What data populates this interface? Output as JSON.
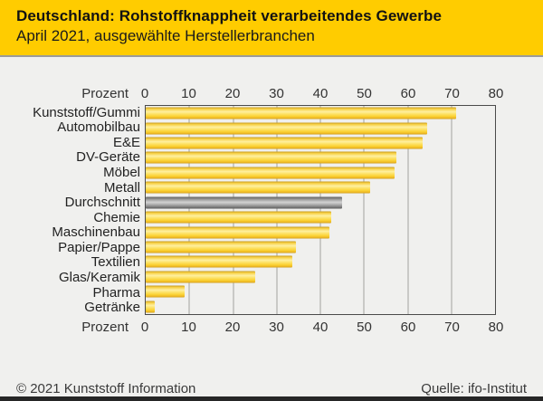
{
  "header": {
    "title": "Deutschland: Rohstoffknappheit verarbeitendes Gewerbe",
    "subtitle": "April 2021, ausgewählte Herstellerbranchen",
    "background_color": "#FFCC00"
  },
  "chart_data": {
    "type": "bar",
    "orientation": "horizontal",
    "axis_label": "Prozent",
    "ticks": [
      0,
      10,
      20,
      30,
      40,
      50,
      60,
      70,
      80
    ],
    "xlim": [
      0,
      80
    ],
    "grid": true,
    "categories": [
      "Kunststoff/Gummi",
      "Automobilbau",
      "E&E",
      "DV-Geräte",
      "Möbel",
      "Metall",
      "Durchschnitt",
      "Chemie",
      "Maschinenbau",
      "Papier/Pappe",
      "Textilien",
      "Glas/Keramik",
      "Pharma",
      "Getränke"
    ],
    "values": [
      71,
      64.5,
      63.5,
      57.5,
      57,
      51.5,
      45,
      42.5,
      42,
      34.5,
      33.5,
      25,
      9,
      2
    ],
    "highlight_category": "Durchschnitt",
    "bar_color": "#FCD335",
    "highlight_color": "#9E9E9E"
  },
  "footer": {
    "copyright": "© 2021 Kunststoff Information",
    "source": "Quelle: ifo-Institut"
  }
}
